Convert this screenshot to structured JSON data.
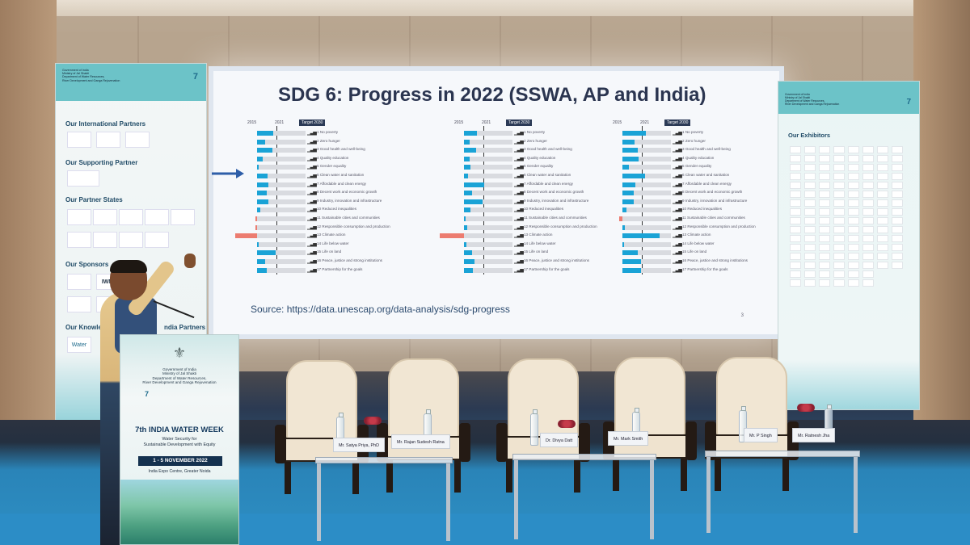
{
  "slide": {
    "title": "SDG 6: Progress in 2022 (SSWA, AP and India)",
    "source": "Source: https://data.unescap.org/data-analysis/sdg-progress",
    "page_number": "3"
  },
  "panels": [
    {
      "year_start": "2015",
      "year_mid": "2021",
      "target": "Target 2030",
      "labels": [
        "1 No poverty",
        "2 Zero hunger",
        "3 Good health and well-being",
        "4 Quality education",
        "5 Gender equality",
        "6 Clean water and sanitation",
        "7 Affordable and clean energy",
        "8 Decent work and economic growth",
        "9 Industry, innovation and infrastructure",
        "10 Reduced inequalities",
        "11 Sustainable cities and communities",
        "12 Responsible consumption and production",
        "13 Climate action",
        "14 Life below water",
        "15 Life on land",
        "16 Peace, justice and strong institutions",
        "17 Partnership for the goals"
      ],
      "progress": [
        0.34,
        0.17,
        0.31,
        0.11,
        0.04,
        0.21,
        0.23,
        0.2,
        0.24,
        0.06,
        -0.02,
        -0.03,
        -0.45,
        0.03,
        0.38,
        0.17,
        0.2
      ]
    },
    {
      "year_start": "2015",
      "year_mid": "2021",
      "target": "Target 2030",
      "labels": [
        "1 No poverty",
        "2 Zero hunger",
        "3 Good health and well-being",
        "4 Quality education",
        "5 Gender equality",
        "6 Clean water and sanitation",
        "7 Affordable and clean energy",
        "8 Decent work and economic growth",
        "9 Industry, innovation and infrastructure",
        "10 Reduced inequalities",
        "11 Sustainable cities and communities",
        "12 Responsible consumption and production",
        "13 Climate action",
        "14 Life below water",
        "15 Life on land",
        "16 Peace, justice and strong institutions",
        "17 Partnership for the goals"
      ],
      "progress": [
        0.26,
        0.11,
        0.25,
        0.12,
        0.13,
        0.09,
        0.42,
        0.17,
        0.38,
        0.14,
        0.03,
        0.07,
        -0.5,
        0.05,
        0.16,
        0.22,
        0.19
      ]
    },
    {
      "year_start": "2015",
      "year_mid": "2021",
      "target": "Target 2030",
      "labels": [
        "1 No poverty",
        "2 Zero hunger",
        "3 Good health and well-being",
        "4 Quality education",
        "5 Gender equality",
        "6 Clean water and sanitation",
        "7 Affordable and clean energy",
        "8 Decent work and economic growth",
        "9 Industry, innovation and infrastructure",
        "10 Reduced inequalities",
        "11 Sustainable cities and communities",
        "12 Responsible consumption and production",
        "13 Climate action",
        "14 Life below water",
        "15 Life on land",
        "16 Peace, justice and strong institutions",
        "17 Partnership for the goals"
      ],
      "progress": [
        0.48,
        0.25,
        0.31,
        0.34,
        0.14,
        0.46,
        0.26,
        0.23,
        0.24,
        0.09,
        -0.06,
        0.05,
        0.76,
        0.02,
        0.31,
        0.39,
        0.39
      ]
    }
  ],
  "left_banner": {
    "gov_line1": "Government of India",
    "gov_line2": "Ministry of Jal Shakti",
    "gov_line3": "Department of Water Resources,",
    "gov_line4": "River Development and Ganga Rejuvenation",
    "international_partners": "Our International Partners",
    "supporting_partner": "Our Supporting Partner",
    "partner_states": "Our Partner States",
    "sponsors": "Our Sponsors",
    "knowledge_partners": "Our Knowledge",
    "knowledge_partners_suffix": "ndia Partners",
    "sponsor_iwmi": "IWMI",
    "knowledge_water": "Water"
  },
  "right_banner": {
    "gov_line1": "Government of India",
    "gov_line2": "Ministry of Jal Shakti",
    "gov_line3": "Department of Water Resources,",
    "gov_line4": "River Development and Ganga Rejuvenation",
    "title": "Our Exhibitors"
  },
  "podium": {
    "gov_line1": "Government of India",
    "gov_line2": "Ministry of Jal Shakti",
    "gov_line3": "Department of Water Resources,",
    "gov_line4": "River Development and Ganga Rejuvenation",
    "event_title": "7th INDIA WATER WEEK",
    "subtitle_line1": "Water Security for",
    "subtitle_line2": "Sustainable Development with Equity",
    "date": "1 - 5 NOVEMBER 2022",
    "venue": "India Expo Centre, Greater Noida"
  },
  "nameplates": [
    "Mr. Satya Priya, PhD",
    "Mr. Rajan Sudesh Ratna",
    "Dr. Divya Datt",
    "Mr. Mark Smith",
    "Mr. P Singh",
    "Mr. Ratnesh Jha"
  ],
  "colors": {
    "bar_positive": "#1aa3d6",
    "bar_negative": "#ec7c70",
    "track": "#d9dbe0",
    "title": "#2b3550",
    "stage_blue": "#2c8dc6"
  }
}
